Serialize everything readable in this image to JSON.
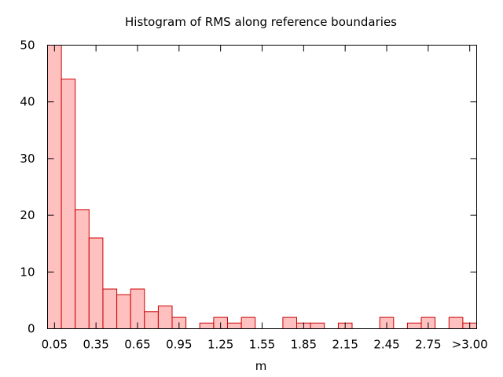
{
  "chart_data": {
    "type": "bar",
    "title": "Histogram of RMS along reference boundaries",
    "xlabel": "m",
    "ylabel": "",
    "ylim": [
      0,
      50
    ],
    "xlim": [
      0,
      3.1
    ],
    "bin_width": 0.1,
    "x_ticks": [
      {
        "value": 0.05,
        "label": "0.05"
      },
      {
        "value": 0.35,
        "label": "0.35"
      },
      {
        "value": 0.65,
        "label": "0.65"
      },
      {
        "value": 0.95,
        "label": "0.95"
      },
      {
        "value": 1.25,
        "label": "1.25"
      },
      {
        "value": 1.55,
        "label": "1.55"
      },
      {
        "value": 1.85,
        "label": "1.85"
      },
      {
        "value": 2.15,
        "label": "2.15"
      },
      {
        "value": 2.45,
        "label": "2.45"
      },
      {
        "value": 2.75,
        "label": "2.75"
      },
      {
        "value": 3.05,
        "label": ">3.00"
      }
    ],
    "y_ticks": [
      0,
      10,
      20,
      30,
      40,
      50
    ],
    "bins": [
      {
        "x": 0.05,
        "count": 50
      },
      {
        "x": 0.15,
        "count": 44
      },
      {
        "x": 0.25,
        "count": 21
      },
      {
        "x": 0.35,
        "count": 16
      },
      {
        "x": 0.45,
        "count": 7
      },
      {
        "x": 0.55,
        "count": 6
      },
      {
        "x": 0.65,
        "count": 7
      },
      {
        "x": 0.75,
        "count": 3
      },
      {
        "x": 0.85,
        "count": 4
      },
      {
        "x": 0.95,
        "count": 2
      },
      {
        "x": 1.05,
        "count": 0
      },
      {
        "x": 1.15,
        "count": 1
      },
      {
        "x": 1.25,
        "count": 2
      },
      {
        "x": 1.35,
        "count": 1
      },
      {
        "x": 1.45,
        "count": 2
      },
      {
        "x": 1.55,
        "count": 0
      },
      {
        "x": 1.65,
        "count": 0
      },
      {
        "x": 1.75,
        "count": 2
      },
      {
        "x": 1.85,
        "count": 1
      },
      {
        "x": 1.95,
        "count": 1
      },
      {
        "x": 2.05,
        "count": 0
      },
      {
        "x": 2.15,
        "count": 1
      },
      {
        "x": 2.25,
        "count": 0
      },
      {
        "x": 2.35,
        "count": 0
      },
      {
        "x": 2.45,
        "count": 2
      },
      {
        "x": 2.55,
        "count": 0
      },
      {
        "x": 2.65,
        "count": 1
      },
      {
        "x": 2.75,
        "count": 2
      },
      {
        "x": 2.85,
        "count": 0
      },
      {
        "x": 2.95,
        "count": 2
      },
      {
        "x": 3.05,
        "count": 1
      }
    ],
    "grid": false,
    "legend": "none",
    "colors": {
      "bar_fill": "#ffc0c0",
      "bar_stroke": "#cc0000",
      "axis": "#000000"
    }
  }
}
